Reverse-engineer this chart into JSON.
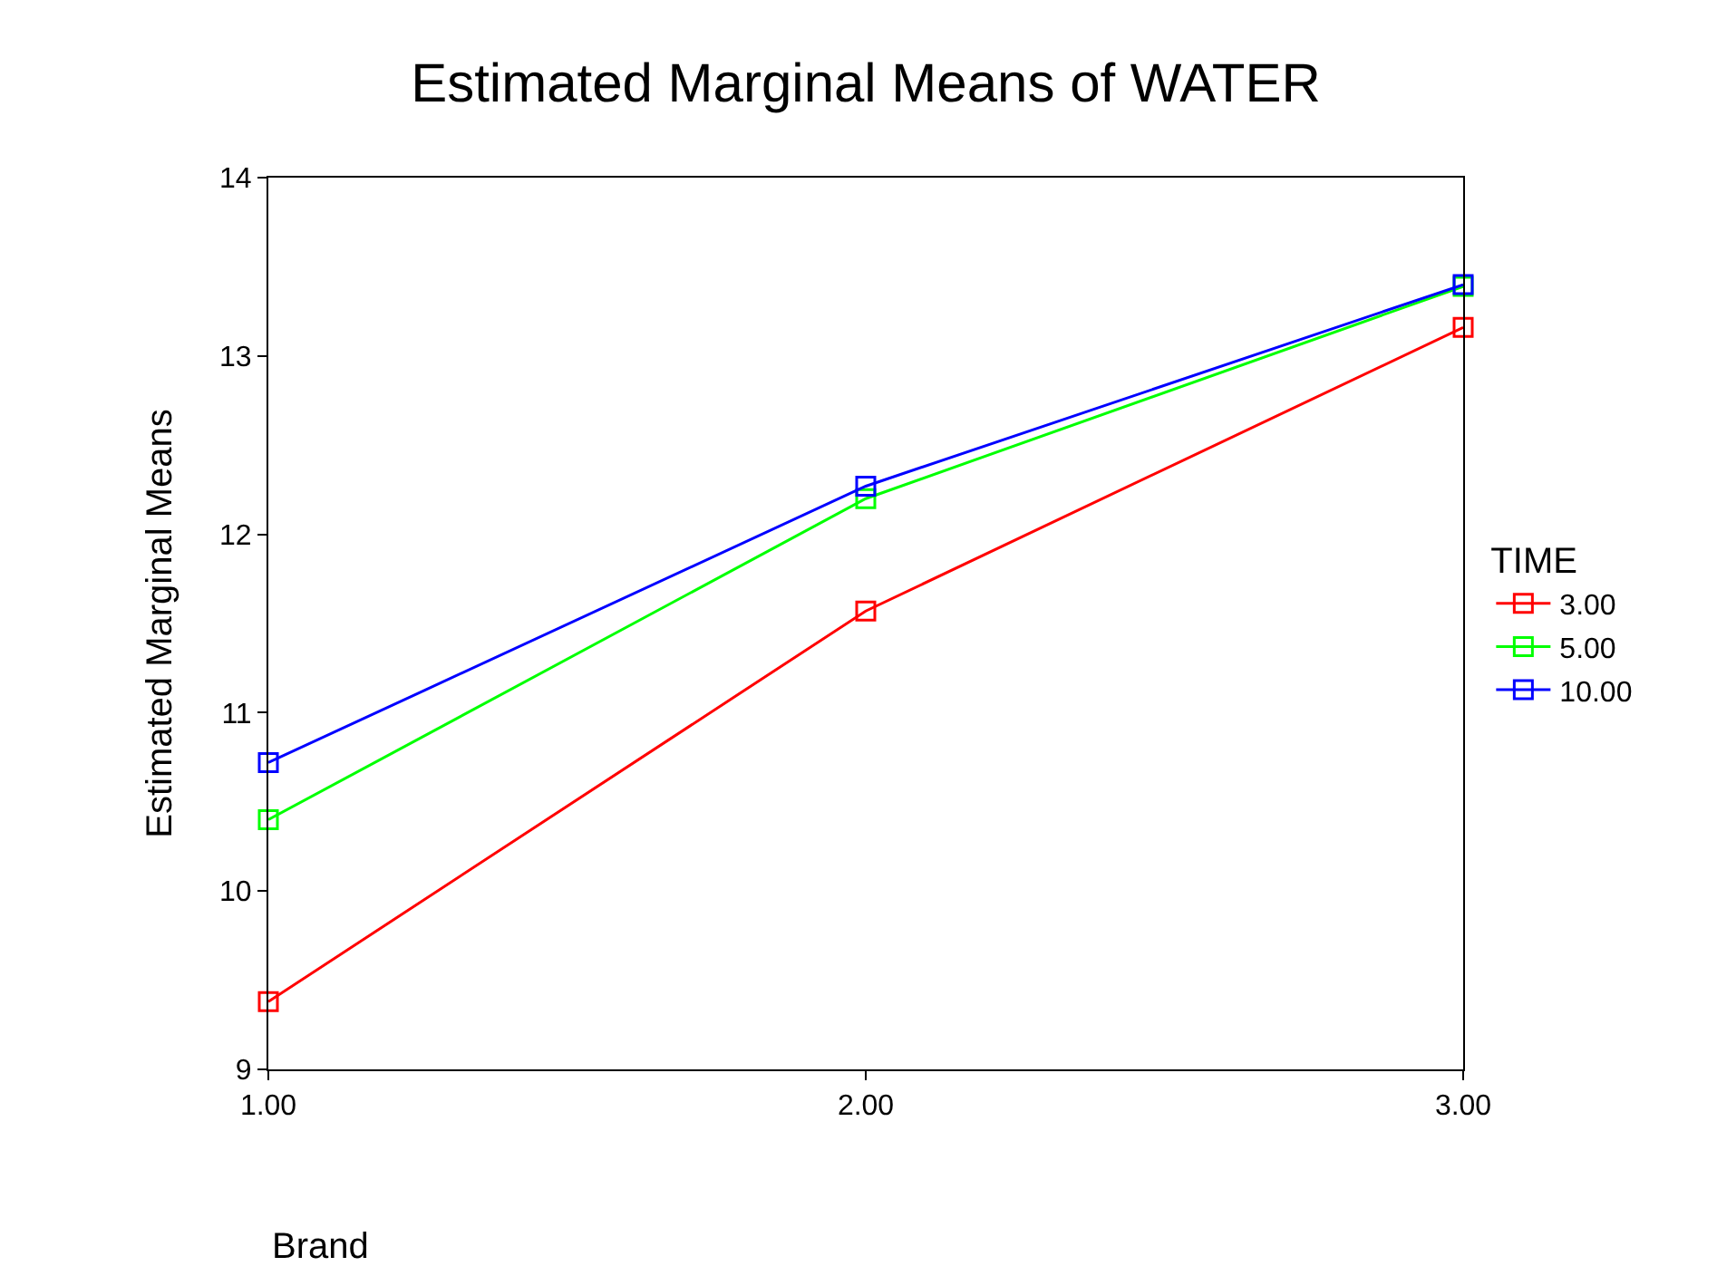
{
  "chart_data": {
    "type": "line",
    "title": "Estimated Marginal Means of WATER",
    "xlabel": "Brand",
    "ylabel": "Estimated Marginal Means",
    "legend_title": "TIME",
    "x": [
      1,
      2,
      3
    ],
    "series": [
      {
        "name": "3.00",
        "color": "#ff0000",
        "values": [
          9.38,
          11.57,
          13.16
        ]
      },
      {
        "name": "5.00",
        "color": "#00ff00",
        "values": [
          10.4,
          12.2,
          13.39
        ]
      },
      {
        "name": "10.00",
        "color": "#0000ff",
        "values": [
          10.72,
          12.27,
          13.4
        ]
      }
    ],
    "xlim": [
      1,
      3
    ],
    "xticks": [
      {
        "value": 1,
        "label": "1.00"
      },
      {
        "value": 2,
        "label": "2.00"
      },
      {
        "value": 3,
        "label": "3.00"
      }
    ],
    "ylim": [
      9,
      14
    ],
    "yticks": [
      9,
      10,
      11,
      12,
      13,
      14
    ],
    "marker": "square",
    "line_style": "solid",
    "legend": "right"
  }
}
